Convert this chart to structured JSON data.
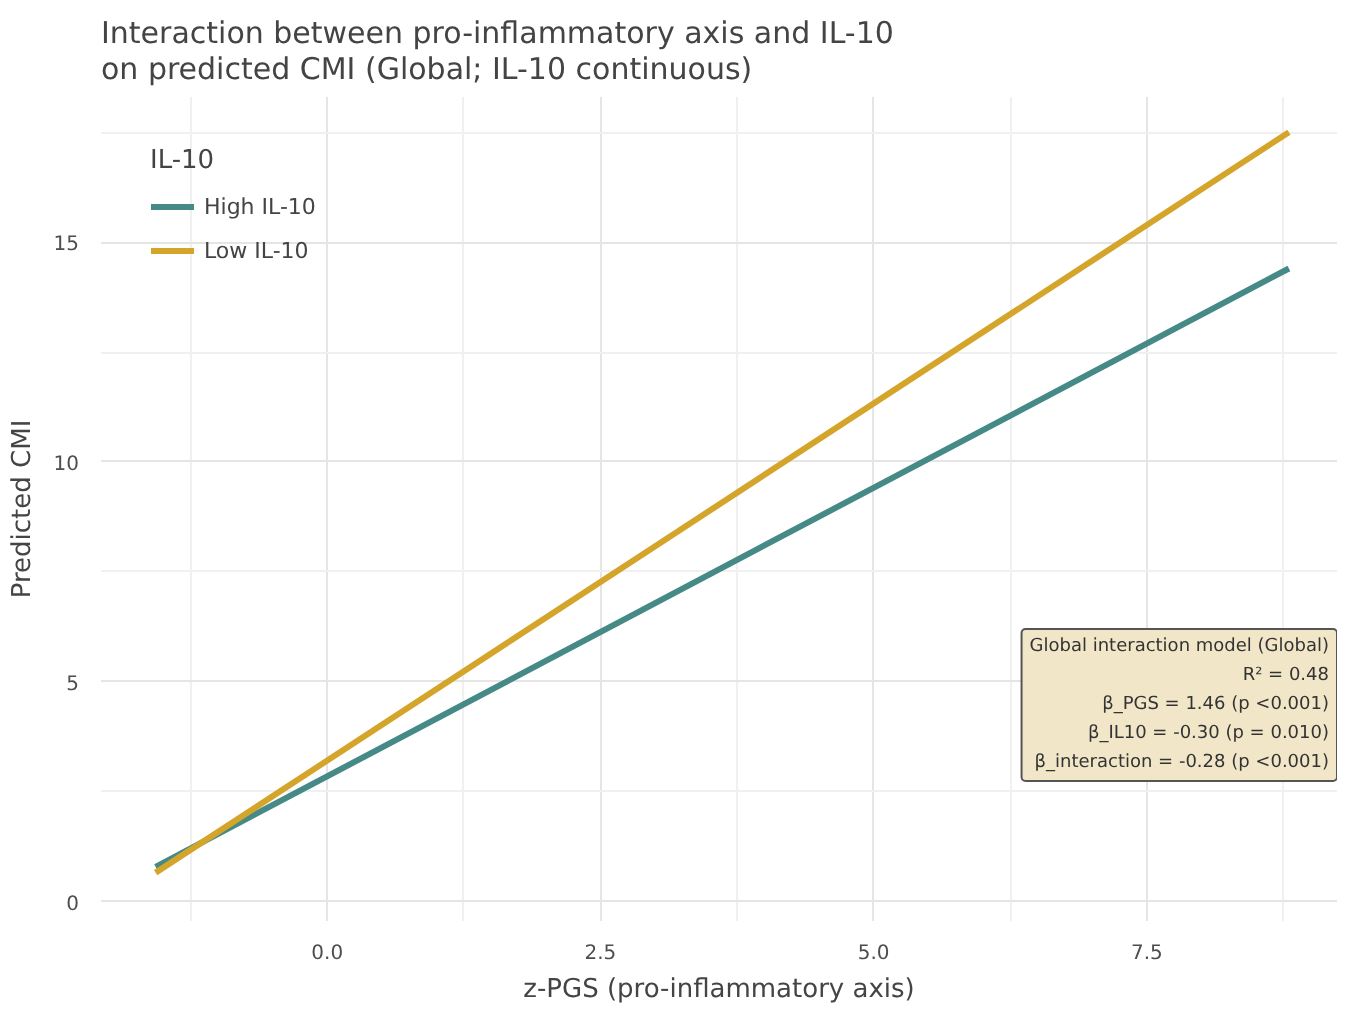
{
  "chart_data": {
    "type": "line",
    "title": "Interaction between pro-inflammatory axis and IL-10\non predicted CMI (Global; IL-10 continuous)",
    "xlabel": "z-PGS (pro-inflammatory axis)",
    "ylabel": "Predicted CMI",
    "legend_title": "IL-10",
    "x": [
      -1.57,
      8.8
    ],
    "series": [
      {
        "name": "High IL-10",
        "color": "#458a86",
        "values": [
          0.79,
          14.4
        ]
      },
      {
        "name": "Low IL-10",
        "color": "#d4a52a",
        "values": [
          0.66,
          17.5
        ]
      }
    ],
    "xlim": [
      -2.07,
      9.24
    ],
    "ylim": [
      -0.44,
      18.3
    ],
    "xticks": [
      {
        "value": 0,
        "label": "0.0"
      },
      2.5,
      {
        "value": 5,
        "label": "5.0"
      },
      7.5
    ],
    "yticks": [
      0,
      5,
      10,
      15
    ],
    "grid": true,
    "legend": "top left",
    "line_style": "solid",
    "marker": "none",
    "annotations": [
      "Global interaction model (Global)\nR² = 0.48\nβ_PGS = 1.46 (p <0.001)\nβ_IL10 = -0.30 (p = 0.010)\nβ_interaction = -0.28 (p <0.001)"
    ]
  }
}
